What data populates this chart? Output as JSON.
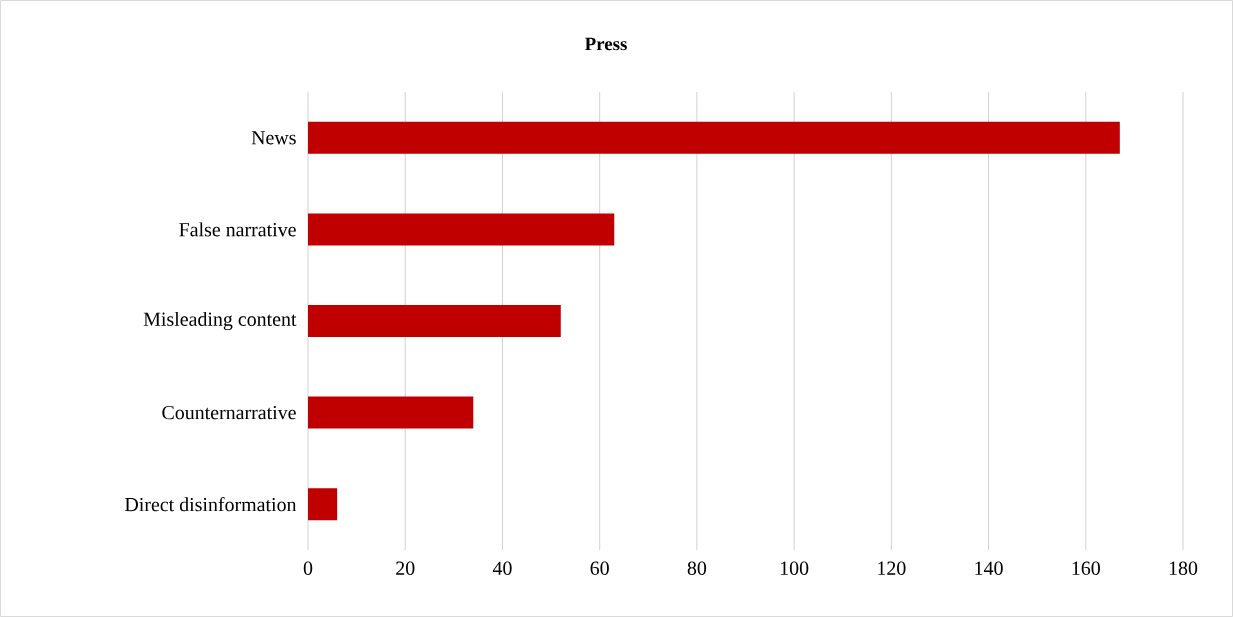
{
  "chart_data": {
    "type": "bar",
    "orientation": "horizontal",
    "title": "Press",
    "categories": [
      "News",
      "False narrative",
      "Misleading content",
      "Counternarrative",
      "Direct disinformation"
    ],
    "values": [
      167,
      63,
      52,
      34,
      6
    ],
    "color": "#c00000",
    "xlim": [
      0,
      180
    ],
    "xticks": [
      0,
      20,
      40,
      60,
      80,
      100,
      120,
      140,
      160,
      180
    ],
    "grid": "x"
  }
}
